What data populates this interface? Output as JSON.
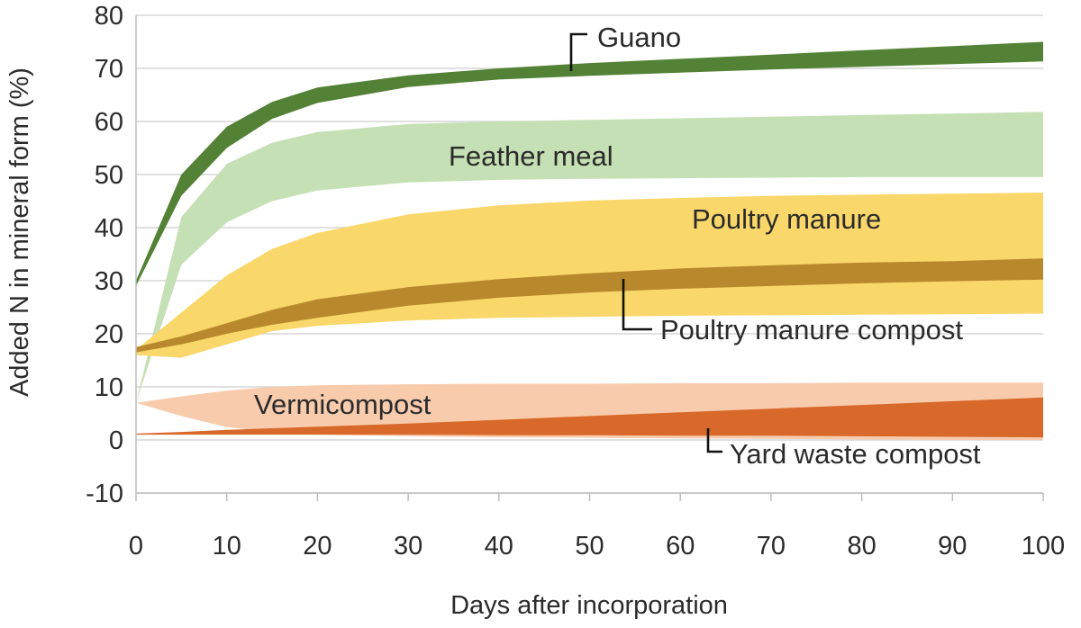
{
  "chart_data": {
    "type": "area",
    "xlabel": "Days after incorporation",
    "ylabel": "Added N in mineral form (%)",
    "xlim": [
      0,
      100
    ],
    "ylim": [
      -10,
      80
    ],
    "x_ticks": [
      "0",
      "10",
      "20",
      "30",
      "40",
      "50",
      "60",
      "70",
      "80",
      "90",
      "100"
    ],
    "y_ticks": [
      "-10",
      "0",
      "10",
      "20",
      "30",
      "40",
      "50",
      "60",
      "70",
      "80"
    ],
    "grid": "horizontal",
    "legend": "none",
    "x": [
      0,
      5,
      10,
      15,
      20,
      30,
      40,
      50,
      60,
      70,
      80,
      90,
      100
    ],
    "series": [
      {
        "name": "Feather meal",
        "color": "#c5e0b4",
        "low": [
          7,
          33,
          41,
          45,
          47,
          48.5,
          49,
          49.2,
          49.3,
          49.4,
          49.5,
          49.5,
          49.5
        ],
        "high": [
          7,
          42,
          52,
          56,
          58,
          59.5,
          60,
          60.3,
          60.6,
          60.9,
          61.2,
          61.5,
          61.8
        ]
      },
      {
        "name": "Poultry manure",
        "color": "#fad76a",
        "low": [
          16,
          15.5,
          18,
          20.5,
          21.5,
          22.5,
          23,
          23.2,
          23.4,
          23.5,
          23.6,
          23.7,
          23.8
        ],
        "high": [
          17,
          24,
          31,
          36,
          39,
          42.5,
          44.2,
          45.1,
          45.6,
          46,
          46.2,
          46.4,
          46.6
        ]
      },
      {
        "name": "Poultry manure compost",
        "color": "#b8892c",
        "low": [
          16.5,
          18,
          20,
          21.7,
          23,
          25.3,
          26.8,
          27.8,
          28.5,
          29,
          29.5,
          29.9,
          30.2
        ],
        "high": [
          17.5,
          19.5,
          22,
          24.5,
          26.5,
          28.8,
          30.3,
          31.4,
          32.3,
          32.9,
          33.4,
          33.7,
          34.2
        ]
      },
      {
        "name": "Guano",
        "color": "#538135",
        "low": [
          29,
          46,
          55,
          60.5,
          63.5,
          66.5,
          67.9,
          68.6,
          69.2,
          69.8,
          70.3,
          70.8,
          71.3
        ],
        "high": [
          30,
          50,
          59,
          63.7,
          66.4,
          68.7,
          70,
          71,
          71.8,
          72.6,
          73.4,
          74.2,
          75
        ]
      },
      {
        "name": "Vermicompost",
        "color": "#f8cbad",
        "low": [
          7,
          4.5,
          2.4,
          1.5,
          1,
          0.7,
          0.5,
          0.4,
          0.3,
          0.2,
          0.1,
          0,
          0
        ],
        "high": [
          7,
          8.2,
          9.3,
          10,
          10.3,
          10.5,
          10.6,
          10.6,
          10.7,
          10.7,
          10.8,
          10.8,
          10.8
        ]
      },
      {
        "name": "Yard waste compost",
        "color": "#d8692a",
        "low": [
          1,
          1,
          1,
          1,
          1,
          1,
          0.9,
          0.9,
          0.8,
          0.8,
          0.7,
          0.6,
          0.5
        ],
        "high": [
          1.2,
          1.5,
          1.9,
          2.2,
          2.5,
          3.1,
          3.8,
          4.5,
          5.2,
          5.9,
          6.6,
          7.3,
          8
        ]
      }
    ],
    "annotations": [
      {
        "series": "Guano",
        "text": "Guano",
        "color": "#2b2b2b"
      },
      {
        "series": "Feather meal",
        "text": "Feather meal",
        "color": "#2b2b2b"
      },
      {
        "series": "Poultry manure",
        "text": "Poultry manure",
        "color": "#2b2b2b"
      },
      {
        "series": "Poultry manure compost",
        "text": "Poultry manure compost",
        "color": "#2b2b2b"
      },
      {
        "series": "Vermicompost",
        "text": "Vermicompost",
        "color": "#2b2b2b"
      },
      {
        "series": "Yard waste compost",
        "text": "Yard waste compost",
        "color": "#2b2b2b"
      }
    ]
  }
}
